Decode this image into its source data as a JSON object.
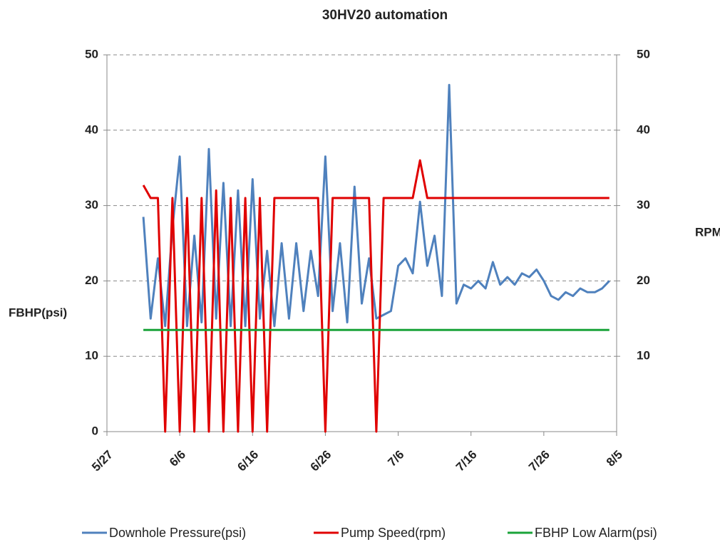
{
  "chart_data": {
    "type": "line",
    "title": "30HV20  automation",
    "y_label": "FBHP(psi)",
    "y2_label": "RPM",
    "x": [
      "6/1",
      "6/2",
      "6/3",
      "6/4",
      "6/5",
      "6/6",
      "6/7",
      "6/8",
      "6/9",
      "6/10",
      "6/11",
      "6/12",
      "6/13",
      "6/14",
      "6/15",
      "6/16",
      "6/17",
      "6/18",
      "6/19",
      "6/20",
      "6/21",
      "6/22",
      "6/23",
      "6/24",
      "6/25",
      "6/26",
      "6/27",
      "6/28",
      "6/29",
      "6/30",
      "7/1",
      "7/2",
      "7/3",
      "7/4",
      "7/5",
      "7/6",
      "7/7",
      "7/8",
      "7/9",
      "7/10",
      "7/11",
      "7/12",
      "7/13",
      "7/14",
      "7/15",
      "7/16",
      "7/17",
      "7/18",
      "7/19",
      "7/20",
      "7/21",
      "7/22",
      "7/23",
      "7/24",
      "7/25",
      "7/26",
      "7/27",
      "7/28",
      "7/29",
      "7/30",
      "7/31",
      "8/1",
      "8/2",
      "8/3",
      "8/4"
    ],
    "series": [
      {
        "name": "Downhole Pressure(psi)",
        "color": "#4f81bd",
        "axis": "y",
        "values": [
          28.5,
          15,
          23,
          14,
          27,
          36.5,
          14,
          26,
          14.5,
          37.5,
          15,
          33,
          14,
          32,
          14,
          33.5,
          15,
          24,
          14,
          25,
          15,
          25,
          16,
          24,
          18,
          36.5,
          16,
          25,
          14.5,
          32.5,
          17,
          23,
          15,
          15.5,
          16,
          22,
          23,
          21,
          30.5,
          22,
          26,
          18,
          46,
          17,
          19.5,
          19,
          20,
          19,
          22.5,
          19.5,
          20.5,
          19.5,
          21,
          20.5,
          21.5,
          20,
          18,
          17.5,
          18.5,
          18,
          19,
          18.5,
          18.5,
          19,
          20
        ]
      },
      {
        "name": "Pump Speed(rpm)",
        "color": "#e00000",
        "axis": "y2",
        "values": [
          32.7,
          31,
          31,
          0,
          31,
          0,
          31,
          0,
          31,
          0,
          32,
          0,
          31,
          0,
          31,
          0,
          31,
          0,
          31,
          31,
          31,
          31,
          31,
          31,
          31,
          0,
          31,
          31,
          31,
          31,
          31,
          31,
          0,
          31,
          31,
          31,
          31,
          31,
          36,
          31,
          31,
          31,
          31,
          31,
          31,
          31,
          31,
          31,
          31,
          31,
          31,
          31,
          31,
          31,
          31,
          31,
          31,
          31,
          31,
          31,
          31,
          31,
          31,
          31,
          31
        ]
      },
      {
        "name": "FBHP Low Alarm(psi)",
        "color": "#1aa33a",
        "axis": "y",
        "values": [
          13.5,
          13.5,
          13.5,
          13.5,
          13.5,
          13.5,
          13.5,
          13.5,
          13.5,
          13.5,
          13.5,
          13.5,
          13.5,
          13.5,
          13.5,
          13.5,
          13.5,
          13.5,
          13.5,
          13.5,
          13.5,
          13.5,
          13.5,
          13.5,
          13.5,
          13.5,
          13.5,
          13.5,
          13.5,
          13.5,
          13.5,
          13.5,
          13.5,
          13.5,
          13.5,
          13.5,
          13.5,
          13.5,
          13.5,
          13.5,
          13.5,
          13.5,
          13.5,
          13.5,
          13.5,
          13.5,
          13.5,
          13.5,
          13.5,
          13.5,
          13.5,
          13.5,
          13.5,
          13.5,
          13.5,
          13.5,
          13.5,
          13.5,
          13.5,
          13.5,
          13.5,
          13.5,
          13.5,
          13.5,
          13.5
        ]
      }
    ],
    "xlim": [
      "5/27",
      "8/5"
    ],
    "xticks": [
      "5/27",
      "6/6",
      "6/16",
      "6/26",
      "7/6",
      "7/16",
      "7/26",
      "8/5"
    ],
    "ylim": [
      0,
      50
    ],
    "yticks": [
      0,
      10,
      20,
      30,
      40,
      50
    ],
    "y2lim": [
      0,
      50
    ],
    "y2ticks": [
      10,
      20,
      30,
      40,
      50
    ],
    "grid": true,
    "legend": "bottom"
  }
}
